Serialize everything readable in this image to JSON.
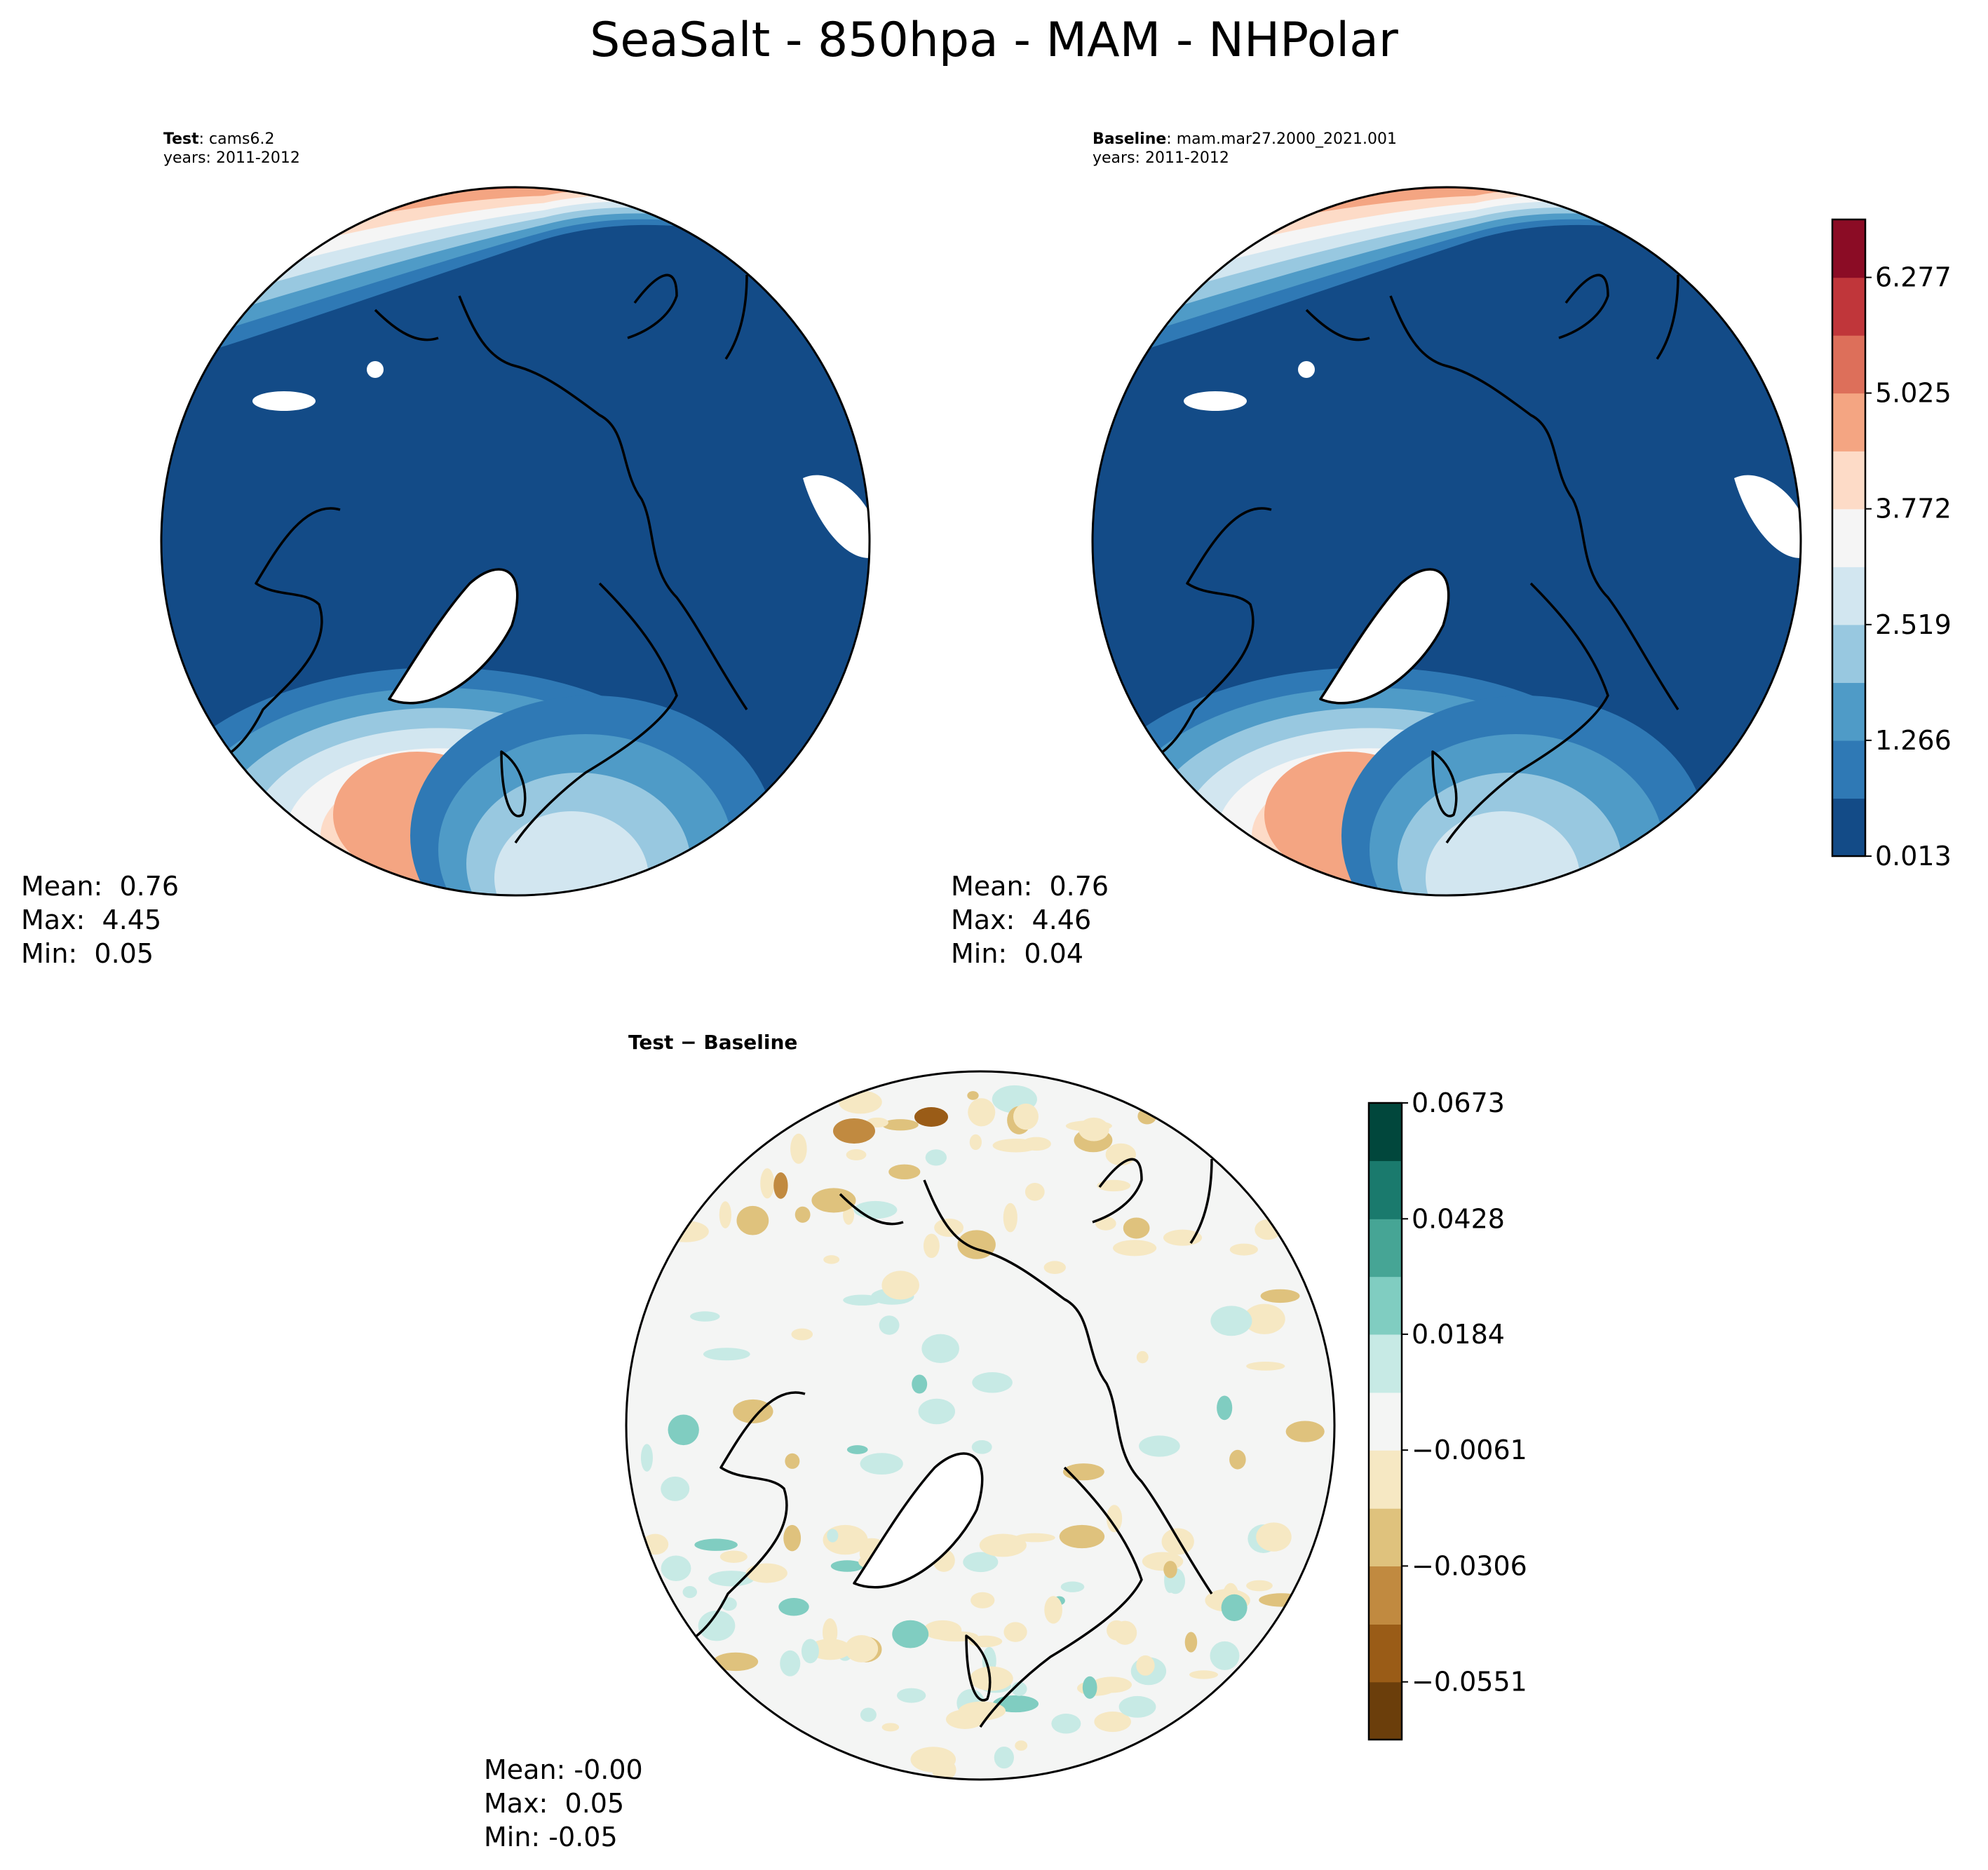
{
  "figure": {
    "title": "SeaSalt - 850hpa - MAM - NHPolar"
  },
  "panels": {
    "test": {
      "label_bold": "Test",
      "label_sep": ":",
      "case": "cams6.2",
      "years": "years: 2011-2012",
      "stats": {
        "mean": "Mean:  0.76",
        "max": "Max:  4.45",
        "min": "Min:  0.05"
      }
    },
    "baseline": {
      "label_bold": "Baseline",
      "label_sep": ":",
      "case": "mam.mar27.2000_2021.001",
      "years": "years: 2011-2012",
      "stats": {
        "mean": "Mean:  0.76",
        "max": "Max:  4.46",
        "min": "Min:  0.04"
      }
    },
    "diff": {
      "label": "Test − Baseline",
      "stats": {
        "mean": "Mean: -0.00",
        "max": "Max:  0.05",
        "min": "Min: -0.05"
      }
    }
  },
  "chart_data": [
    {
      "type": "heatmap",
      "panel": "test",
      "projection": "north-polar-stereographic",
      "colormap": "RdBu_r",
      "levels": [
        0.013,
        0.639,
        1.266,
        1.892,
        2.519,
        3.145,
        3.772,
        4.398,
        5.025,
        5.651,
        6.277,
        6.904
      ],
      "ticks": [
        "0.013",
        "1.266",
        "2.519",
        "3.772",
        "5.025",
        "6.277"
      ],
      "colors": [
        "#134b87",
        "#2f79b5",
        "#4f9bc7",
        "#98c8e0",
        "#d2e6f0",
        "#f5f5f5",
        "#fddbc7",
        "#f4a582",
        "#dd6f5a",
        "#c0363a",
        "#8b0c25"
      ],
      "summary": {
        "mean": 0.76,
        "max": 4.45,
        "min": 0.05
      }
    },
    {
      "type": "heatmap",
      "panel": "baseline",
      "projection": "north-polar-stereographic",
      "colormap": "RdBu_r",
      "levels": [
        0.013,
        0.639,
        1.266,
        1.892,
        2.519,
        3.145,
        3.772,
        4.398,
        5.025,
        5.651,
        6.277,
        6.904
      ],
      "ticks": [
        "0.013",
        "1.266",
        "2.519",
        "3.772",
        "5.025",
        "6.277"
      ],
      "colors": [
        "#134b87",
        "#2f79b5",
        "#4f9bc7",
        "#98c8e0",
        "#d2e6f0",
        "#f5f5f5",
        "#fddbc7",
        "#f4a582",
        "#dd6f5a",
        "#c0363a",
        "#8b0c25"
      ],
      "summary": {
        "mean": 0.76,
        "max": 4.46,
        "min": 0.04
      }
    },
    {
      "type": "heatmap",
      "panel": "diff",
      "projection": "north-polar-stereographic",
      "colormap": "BrBG",
      "levels": [
        -0.0673,
        -0.0551,
        -0.0429,
        -0.0306,
        -0.0184,
        -0.0061,
        0.0061,
        0.0184,
        0.0306,
        0.0428,
        0.0551,
        0.0673
      ],
      "ticks": [
        "−0.0551",
        "−0.0306",
        "−0.0061",
        "0.0184",
        "0.0428",
        "0.0673"
      ],
      "colors": [
        "#6b3e0b",
        "#9a5c17",
        "#c18a40",
        "#dfc27d",
        "#f6e8c3",
        "#f4f5f4",
        "#c7eae5",
        "#80cdc1",
        "#46a595",
        "#1a7a6d",
        "#01473c"
      ],
      "summary": {
        "mean": -0.0,
        "max": 0.05,
        "min": -0.05
      }
    }
  ]
}
